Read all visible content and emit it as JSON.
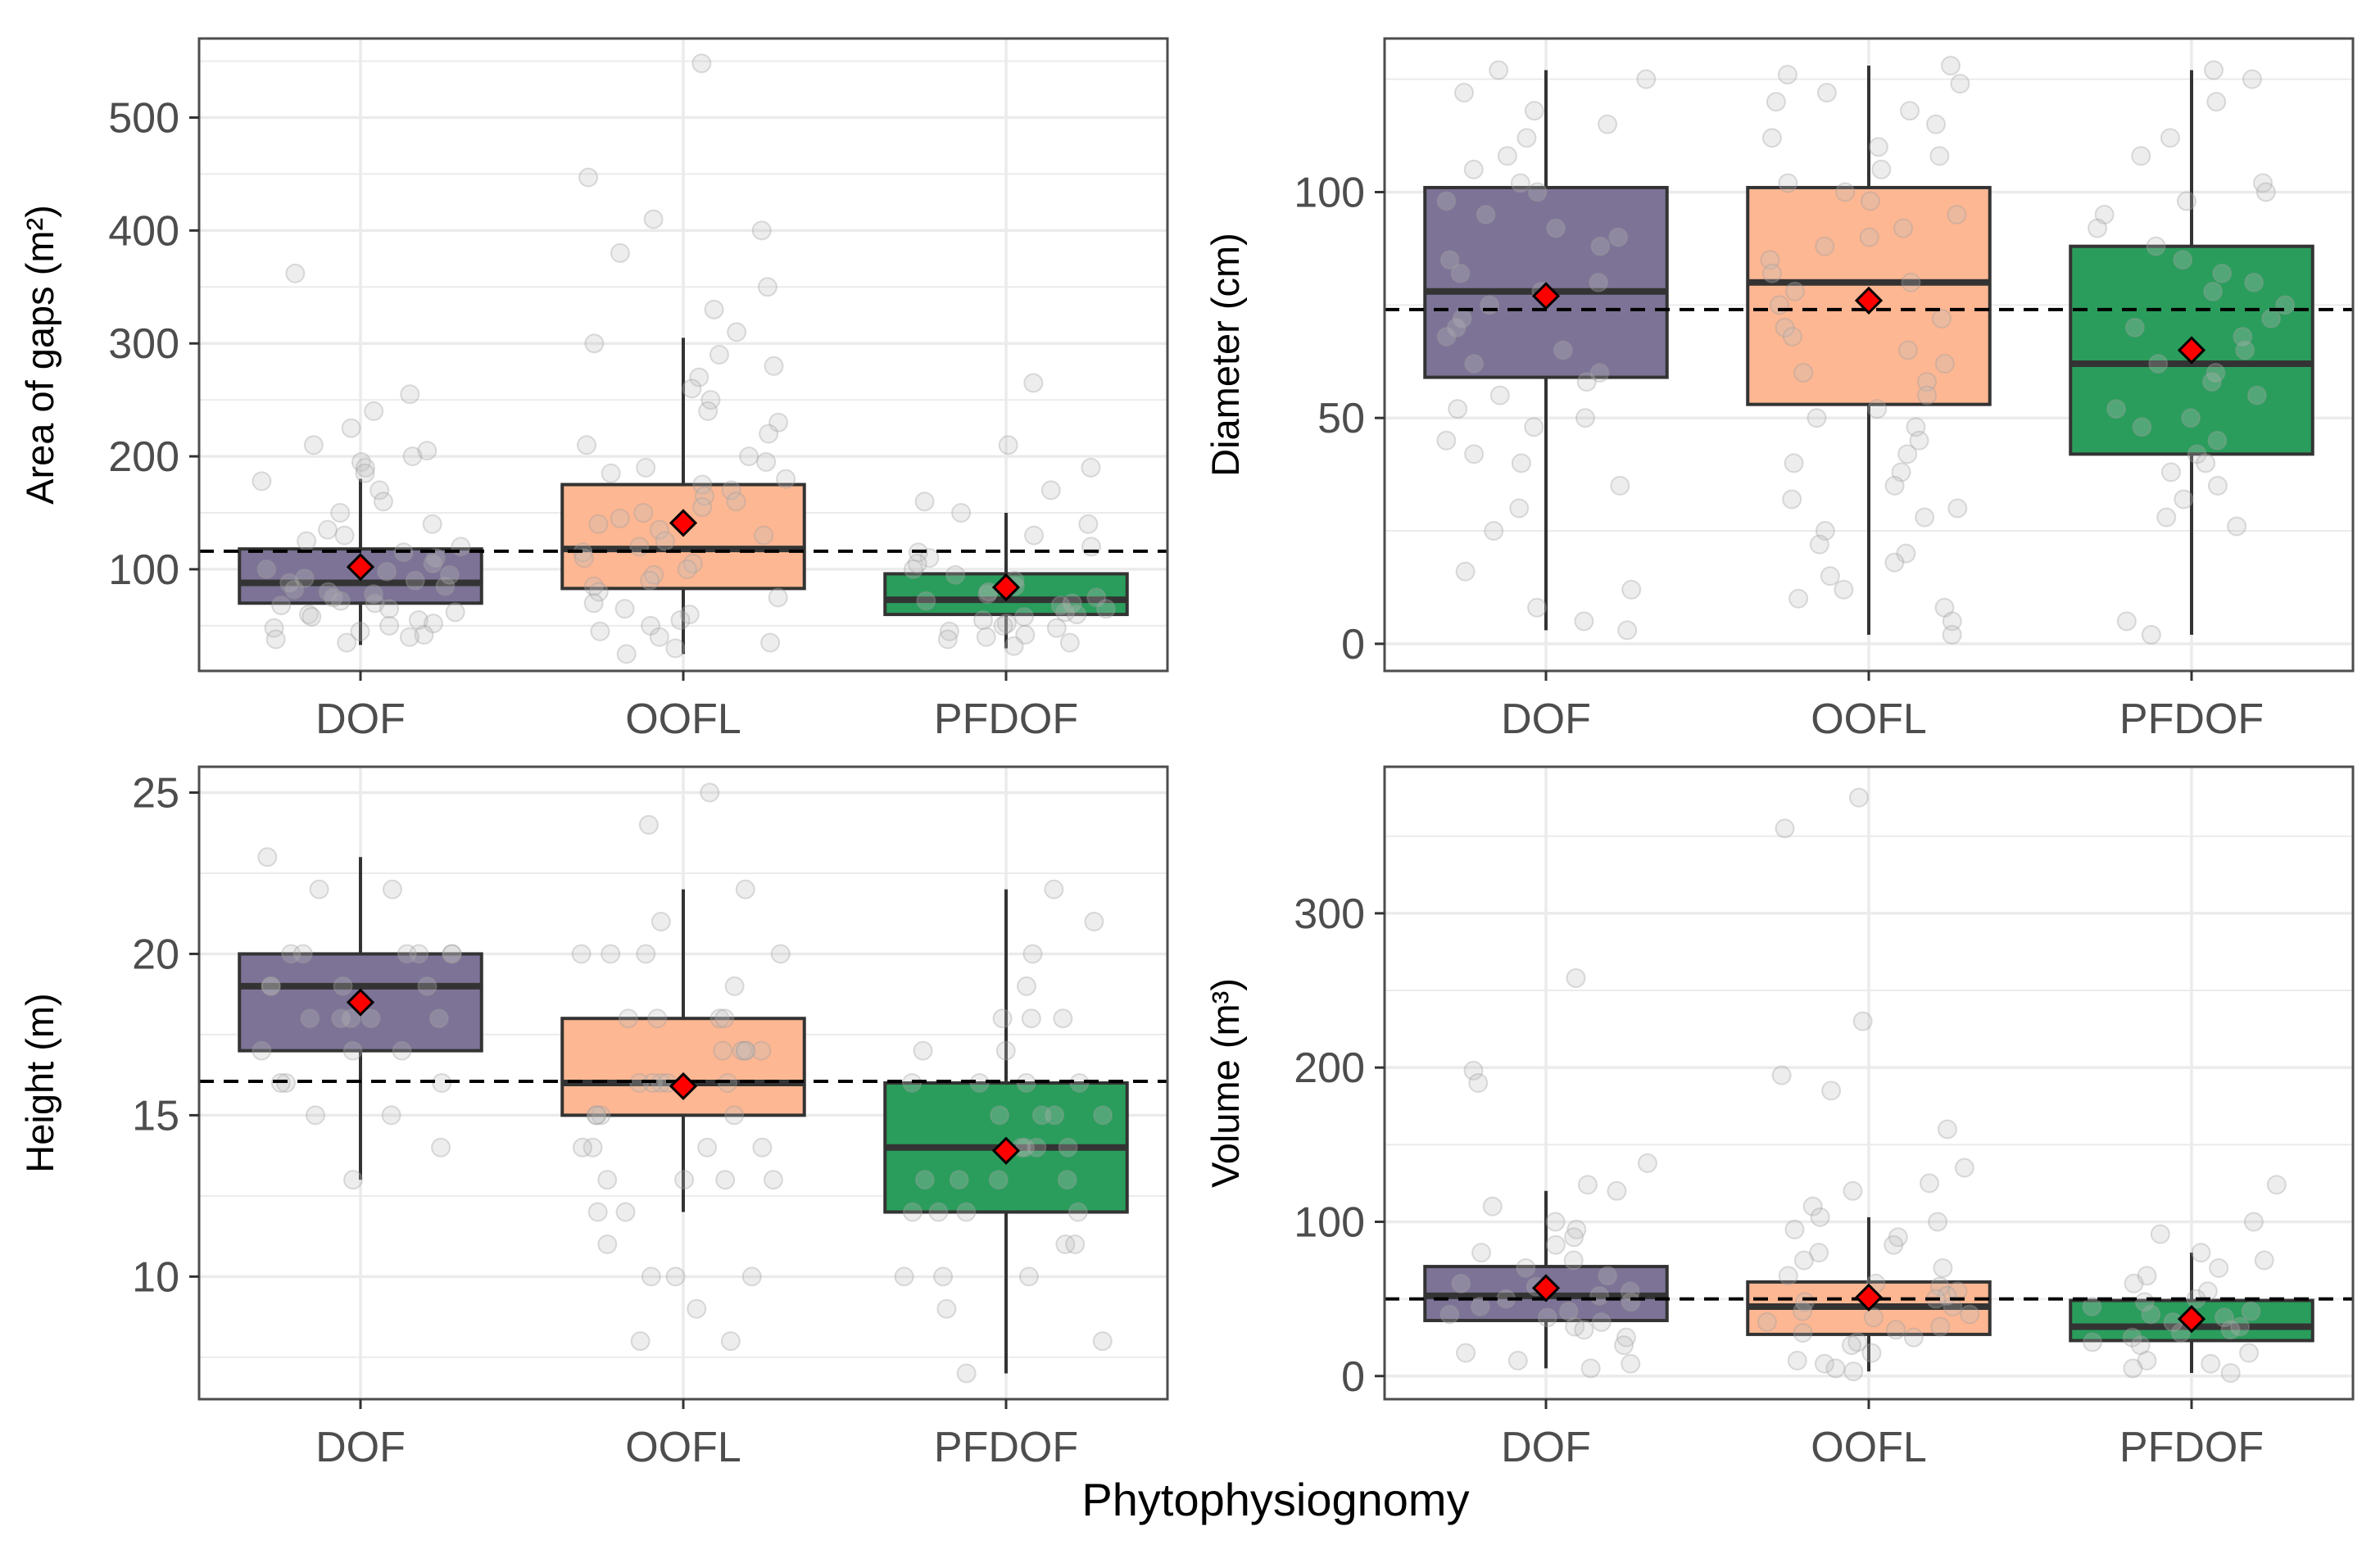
{
  "figure": {
    "xlabel": "Phytophysiognomy"
  },
  "colors": {
    "DOF": "#7d7396",
    "OOFL": "#fdb792",
    "PFDOF": "#2a9d5c",
    "mean_marker": "#ff0000",
    "points": "#bdbdbd",
    "grid": "#ebebeb",
    "panel_border": "#4d4d4d"
  },
  "chart_data": [
    {
      "type": "box",
      "ylabel": "Area of gaps (m²)",
      "categories": [
        "DOF",
        "OOFL",
        "PFDOF"
      ],
      "ylim": [
        10,
        570
      ],
      "yticks": [
        100,
        200,
        300,
        400,
        500
      ],
      "reference_line": 116,
      "boxes": [
        {
          "category": "DOF",
          "whisker_low": 33,
          "q1": 70,
          "median": 88,
          "q3": 118,
          "whisker_high": 180,
          "mean": 102
        },
        {
          "category": "OOFL",
          "whisker_low": 25,
          "q1": 83,
          "median": 118,
          "q3": 175,
          "whisker_high": 305,
          "mean": 141
        },
        {
          "category": "PFDOF",
          "whisker_low": 30,
          "q1": 60,
          "median": 73,
          "q3": 96,
          "whisker_high": 150,
          "mean": 84
        }
      ],
      "points": [
        {
          "category": "DOF",
          "values": [
            362,
            255,
            240,
            225,
            210,
            205,
            200,
            195,
            190,
            185,
            178,
            170,
            160,
            150,
            140,
            135,
            130,
            125,
            120,
            115,
            110,
            105,
            100,
            98,
            95,
            92,
            90,
            88,
            85,
            82,
            80,
            78,
            75,
            72,
            70,
            68,
            65,
            62,
            60,
            58,
            55,
            52,
            50,
            48,
            45,
            42,
            40,
            38,
            35
          ]
        },
        {
          "category": "OOFL",
          "values": [
            548,
            447,
            410,
            400,
            380,
            350,
            330,
            310,
            300,
            290,
            280,
            270,
            260,
            250,
            240,
            230,
            220,
            210,
            200,
            195,
            190,
            185,
            180,
            175,
            170,
            165,
            160,
            155,
            150,
            145,
            140,
            135,
            130,
            125,
            120,
            115,
            110,
            105,
            100,
            95,
            90,
            85,
            80,
            75,
            70,
            65,
            60,
            55,
            50,
            45,
            40,
            35,
            30,
            25
          ]
        },
        {
          "category": "PFDOF",
          "values": [
            265,
            210,
            190,
            170,
            160,
            150,
            140,
            130,
            120,
            115,
            110,
            105,
            100,
            95,
            90,
            85,
            80,
            78,
            75,
            72,
            70,
            68,
            65,
            62,
            60,
            58,
            55,
            52,
            50,
            48,
            45,
            42,
            40,
            38,
            35,
            32
          ]
        }
      ]
    },
    {
      "type": "box",
      "ylabel": "Diameter (cm)",
      "categories": [
        "DOF",
        "OOFL",
        "PFDOF"
      ],
      "ylim": [
        -6,
        134
      ],
      "yticks": [
        0,
        50,
        100
      ],
      "reference_line": 74,
      "boxes": [
        {
          "category": "DOF",
          "whisker_low": 3,
          "q1": 59,
          "median": 78,
          "q3": 101,
          "whisker_high": 127,
          "mean": 77
        },
        {
          "category": "OOFL",
          "whisker_low": 2,
          "q1": 53,
          "median": 80,
          "q3": 101,
          "whisker_high": 128,
          "mean": 76
        },
        {
          "category": "PFDOF",
          "whisker_low": 2,
          "q1": 42,
          "median": 62,
          "q3": 88,
          "whisker_high": 127,
          "mean": 65
        }
      ],
      "points": [
        {
          "category": "DOF",
          "values": [
            127,
            125,
            122,
            118,
            115,
            112,
            108,
            105,
            102,
            100,
            98,
            95,
            92,
            90,
            88,
            85,
            82,
            80,
            78,
            75,
            72,
            70,
            68,
            65,
            62,
            60,
            58,
            55,
            52,
            50,
            48,
            45,
            42,
            40,
            35,
            30,
            25,
            16,
            12,
            8,
            5,
            3
          ]
        },
        {
          "category": "OOFL",
          "values": [
            128,
            126,
            124,
            122,
            120,
            118,
            115,
            112,
            110,
            108,
            105,
            102,
            100,
            98,
            95,
            92,
            90,
            88,
            85,
            82,
            80,
            78,
            75,
            72,
            70,
            68,
            65,
            62,
            60,
            58,
            55,
            52,
            50,
            48,
            45,
            42,
            40,
            38,
            35,
            32,
            30,
            28,
            25,
            22,
            20,
            18,
            15,
            12,
            10,
            8,
            5,
            2
          ]
        },
        {
          "category": "PFDOF",
          "values": [
            127,
            125,
            120,
            112,
            108,
            102,
            100,
            98,
            95,
            92,
            88,
            85,
            82,
            80,
            78,
            75,
            72,
            70,
            68,
            65,
            62,
            60,
            58,
            55,
            52,
            50,
            48,
            45,
            42,
            40,
            38,
            35,
            32,
            28,
            26,
            5,
            2
          ]
        }
      ]
    },
    {
      "type": "box",
      "ylabel": "Height (m)",
      "categories": [
        "DOF",
        "OOFL",
        "PFDOF"
      ],
      "ylim": [
        6.2,
        25.8
      ],
      "yticks": [
        10,
        15,
        20,
        25
      ],
      "reference_line": 16.05,
      "boxes": [
        {
          "category": "DOF",
          "whisker_low": 13,
          "q1": 17,
          "median": 19,
          "q3": 20,
          "whisker_high": 23,
          "mean": 18.5
        },
        {
          "category": "OOFL",
          "whisker_low": 12,
          "q1": 15,
          "median": 16,
          "q3": 18,
          "whisker_high": 22,
          "mean": 15.9
        },
        {
          "category": "PFDOF",
          "whisker_low": 7,
          "q1": 12,
          "median": 14,
          "q3": 16,
          "whisker_high": 22,
          "mean": 13.9
        }
      ],
      "points": [
        {
          "category": "DOF",
          "values": [
            23,
            22,
            22,
            20,
            20,
            20,
            20,
            20,
            20,
            19,
            19,
            19,
            19,
            18,
            18,
            18,
            18,
            18,
            17,
            17,
            17,
            16,
            16,
            16,
            15,
            15,
            14,
            13
          ]
        },
        {
          "category": "OOFL",
          "values": [
            25,
            24,
            22,
            21,
            20,
            20,
            20,
            20,
            19,
            18,
            18,
            18,
            18,
            17,
            17,
            17,
            17,
            17,
            16,
            16,
            16,
            16,
            16,
            15,
            15,
            15,
            15,
            14,
            14,
            14,
            14,
            13,
            13,
            13,
            13,
            12,
            12,
            11,
            10,
            10,
            10,
            9,
            8,
            8
          ]
        },
        {
          "category": "PFDOF",
          "values": [
            22,
            21,
            20,
            19,
            18,
            18,
            18,
            17,
            17,
            16,
            16,
            16,
            16,
            15,
            15,
            15,
            15,
            14,
            14,
            14,
            14,
            13,
            13,
            13,
            13,
            12,
            12,
            12,
            12,
            11,
            11,
            10,
            10,
            10,
            9,
            8,
            7
          ]
        }
      ]
    },
    {
      "type": "box",
      "ylabel": "Volume (m³)",
      "categories": [
        "DOF",
        "OOFL",
        "PFDOF"
      ],
      "ylim": [
        -15,
        395
      ],
      "yticks": [
        0,
        100,
        200,
        300
      ],
      "reference_line": 50,
      "boxes": [
        {
          "category": "DOF",
          "whisker_low": 5,
          "q1": 36,
          "median": 52,
          "q3": 71,
          "whisker_high": 120,
          "mean": 57
        },
        {
          "category": "OOFL",
          "whisker_low": 3,
          "q1": 27,
          "median": 45,
          "q3": 61,
          "whisker_high": 103,
          "mean": 51
        },
        {
          "category": "PFDOF",
          "whisker_low": 2,
          "q1": 23,
          "median": 32,
          "q3": 49,
          "whisker_high": 80,
          "mean": 37
        }
      ],
      "points": [
        {
          "category": "DOF",
          "values": [
            258,
            198,
            190,
            138,
            124,
            120,
            110,
            100,
            95,
            90,
            85,
            80,
            75,
            70,
            65,
            60,
            58,
            55,
            52,
            50,
            48,
            45,
            42,
            40,
            38,
            35,
            32,
            30,
            25,
            20,
            15,
            10,
            8,
            5
          ]
        },
        {
          "category": "OOFL",
          "values": [
            375,
            355,
            230,
            195,
            185,
            160,
            135,
            125,
            120,
            110,
            103,
            100,
            95,
            90,
            85,
            80,
            75,
            70,
            65,
            60,
            58,
            55,
            52,
            50,
            48,
            45,
            42,
            40,
            38,
            35,
            32,
            30,
            28,
            25,
            22,
            20,
            15,
            10,
            8,
            5,
            3
          ]
        },
        {
          "category": "PFDOF",
          "values": [
            124,
            100,
            92,
            80,
            75,
            70,
            65,
            60,
            55,
            50,
            48,
            45,
            42,
            40,
            38,
            35,
            32,
            30,
            28,
            25,
            22,
            20,
            15,
            10,
            8,
            5,
            2
          ]
        }
      ]
    }
  ]
}
